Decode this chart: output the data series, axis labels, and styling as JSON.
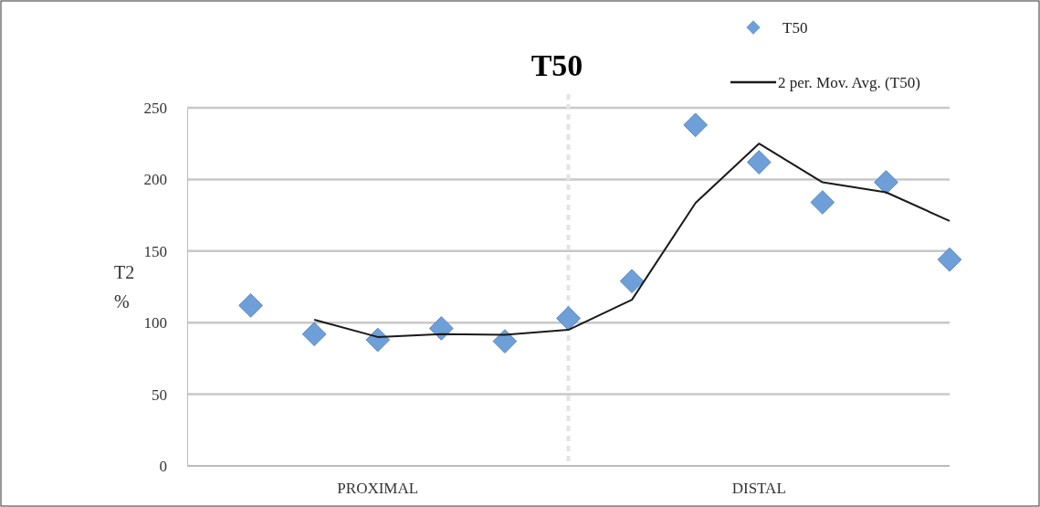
{
  "chart_data": {
    "type": "scatter",
    "title": "T50",
    "ylabel": "T2 %",
    "categories": [
      null,
      null,
      null,
      null,
      null,
      null,
      null,
      null,
      null,
      null,
      null,
      null
    ],
    "annotations": [
      "PROXIMAL",
      "DISTAL"
    ],
    "ylim": [
      0,
      250
    ],
    "yticks": [
      0,
      50,
      100,
      150,
      200,
      250
    ],
    "grid": "y",
    "legend": "top right",
    "series": [
      {
        "name": "T50",
        "marker": "diamond",
        "color": "#6f9fd8",
        "values": [
          112,
          92,
          88,
          96,
          87,
          103,
          129,
          238,
          212,
          184,
          198,
          144
        ]
      },
      {
        "name": "2 per. Mov. Avg. (T50)",
        "type": "line",
        "marker": "none",
        "line_style": "solid",
        "color": "#1a1a1a",
        "values": [
          null,
          102,
          90,
          92,
          91.5,
          95,
          116,
          183.5,
          225,
          198,
          191,
          171
        ]
      }
    ]
  }
}
